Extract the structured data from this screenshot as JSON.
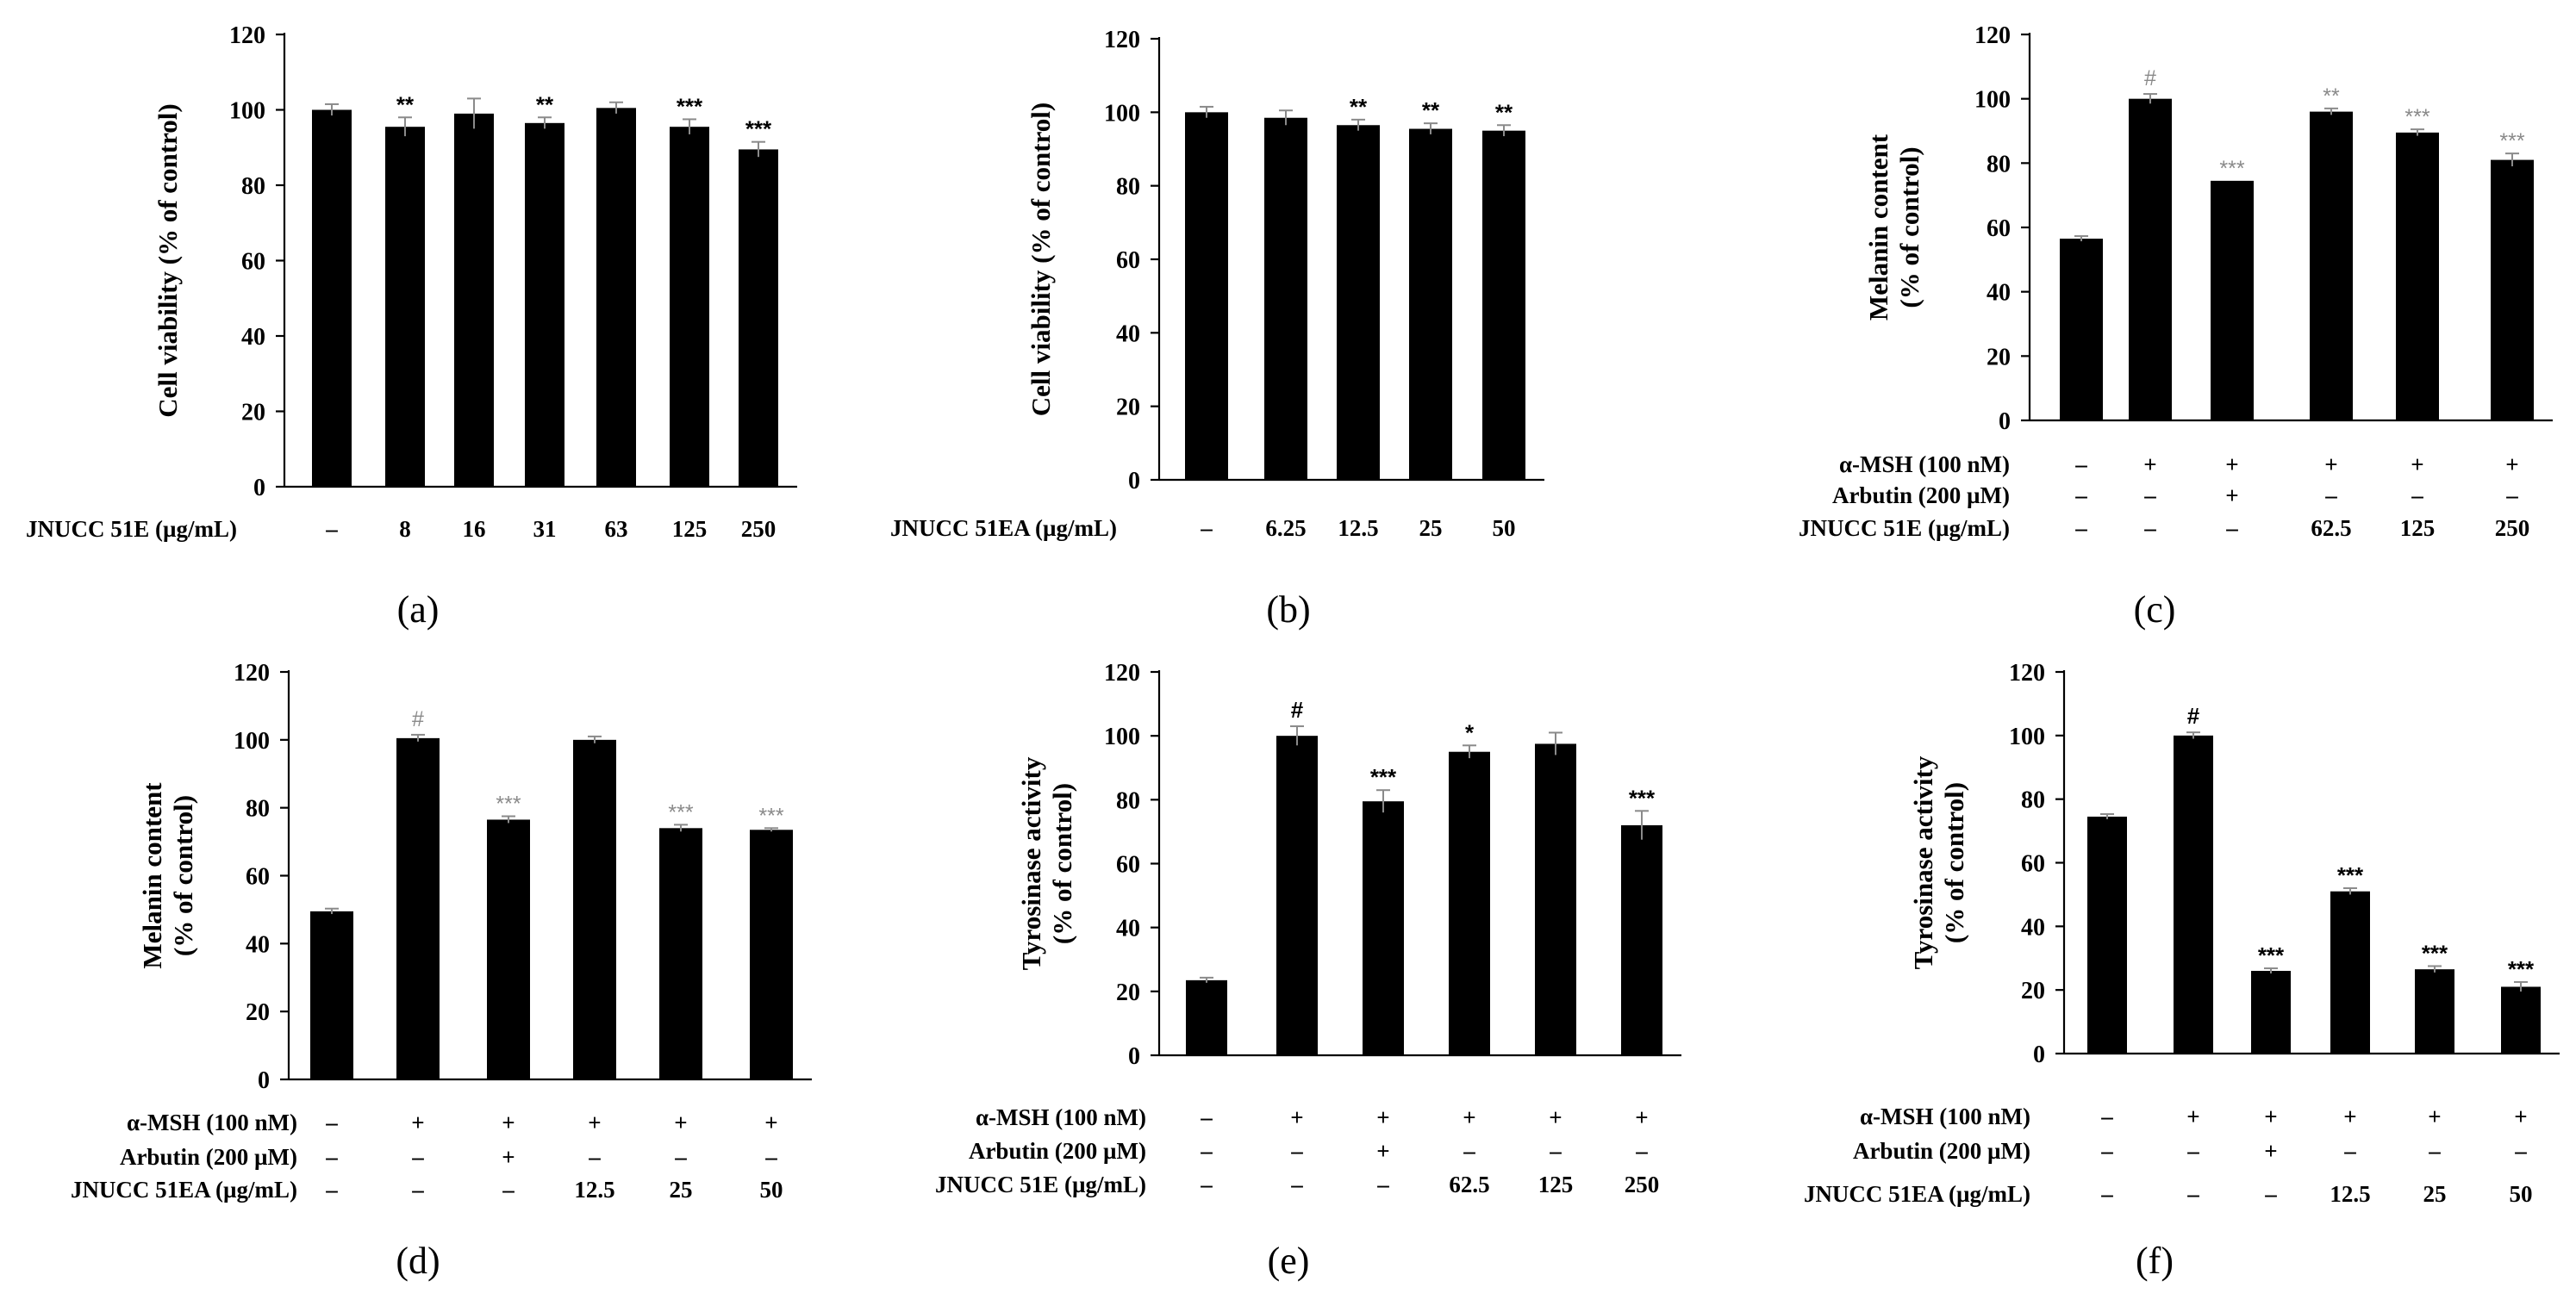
{
  "figure": {
    "panels": [
      "a",
      "b",
      "c",
      "d",
      "e",
      "f"
    ]
  },
  "chart_data": [
    {
      "id": "a",
      "type": "bar",
      "panel_label": "(a)",
      "ylabel": [
        "Cell viability (% of control)"
      ],
      "ylim": [
        0,
        120
      ],
      "yticks": [
        0,
        20,
        40,
        60,
        80,
        100,
        120
      ],
      "values": [
        100,
        95.5,
        99,
        96.5,
        100.5,
        95.5,
        89.5
      ],
      "errors": [
        1.5,
        2.5,
        4,
        1.5,
        1.5,
        2,
        2
      ],
      "significance": [
        "",
        "**",
        "",
        "**",
        "",
        "***",
        "***"
      ],
      "sig_color": "#000000",
      "condition_rows": [
        {
          "label": "JNUCC 51E (µg/mL)",
          "cells": [
            "–",
            "8",
            "16",
            "31",
            "63",
            "125",
            "250"
          ]
        }
      ]
    },
    {
      "id": "b",
      "type": "bar",
      "panel_label": "(b)",
      "ylabel": [
        "Cell viability (% of control)"
      ],
      "ylim": [
        0,
        120
      ],
      "yticks": [
        0,
        20,
        40,
        60,
        80,
        100,
        120
      ],
      "values": [
        100,
        98.5,
        96.5,
        95.5,
        95
      ],
      "errors": [
        1.5,
        2,
        1.5,
        1.5,
        1.5
      ],
      "significance": [
        "",
        "",
        "**",
        "**",
        "**"
      ],
      "sig_color": "#000000",
      "condition_rows": [
        {
          "label": "JNUCC 51EA (µg/mL)",
          "cells": [
            "–",
            "6.25",
            "12.5",
            "25",
            "50"
          ]
        }
      ]
    },
    {
      "id": "c",
      "type": "bar",
      "panel_label": "(c)",
      "ylabel": [
        "Melanin content",
        "(% of control)"
      ],
      "ylim": [
        0,
        120
      ],
      "yticks": [
        0,
        20,
        40,
        60,
        80,
        100,
        120
      ],
      "values": [
        56.5,
        100,
        74.5,
        96,
        89.5,
        81
      ],
      "errors": [
        0.8,
        1.5,
        0,
        1,
        1,
        2
      ],
      "significance": [
        "",
        "#",
        "***",
        "**",
        "***",
        "***"
      ],
      "sig_color": "#8a8a8a",
      "condition_rows": [
        {
          "label": "α-MSH (100 nM)",
          "cells": [
            "–",
            "+",
            "+",
            "+",
            "+",
            "+"
          ]
        },
        {
          "label": "Arbutin (200 µM)",
          "cells": [
            "–",
            "–",
            "+",
            "–",
            "–",
            "–"
          ]
        },
        {
          "label": "JNUCC 51E (µg/mL)",
          "cells": [
            "–",
            "–",
            "–",
            "62.5",
            "125",
            "250"
          ]
        }
      ]
    },
    {
      "id": "d",
      "type": "bar",
      "panel_label": "(d)",
      "ylabel": [
        "Melanin content",
        "(% of control)"
      ],
      "ylim": [
        0,
        120
      ],
      "yticks": [
        0,
        20,
        40,
        60,
        80,
        100,
        120
      ],
      "values": [
        49.5,
        100.5,
        76.5,
        100,
        74,
        73.5
      ],
      "errors": [
        0.8,
        1,
        1,
        1,
        1,
        0.5
      ],
      "significance": [
        "",
        "#",
        "***",
        "",
        "***",
        "***"
      ],
      "sig_color": "#8a8a8a",
      "condition_rows": [
        {
          "label": "α-MSH (100 nM)",
          "cells": [
            "–",
            "+",
            "+",
            "+",
            "+",
            "+"
          ]
        },
        {
          "label": "Arbutin (200 µM)",
          "cells": [
            "–",
            "–",
            "+",
            "–",
            "–",
            "–"
          ]
        },
        {
          "label": "JNUCC 51EA (µg/mL)",
          "cells": [
            "–",
            "–",
            "–",
            "12.5",
            "25",
            "50"
          ]
        }
      ]
    },
    {
      "id": "e",
      "type": "bar",
      "panel_label": "(e)",
      "ylabel": [
        "Tyrosinase activity",
        "(% of control)"
      ],
      "ylim": [
        0,
        120
      ],
      "yticks": [
        0,
        20,
        40,
        60,
        80,
        100,
        120
      ],
      "values": [
        23.5,
        100,
        79.5,
        95,
        97.5,
        72
      ],
      "errors": [
        0.8,
        3,
        3.5,
        2,
        3.5,
        4.5
      ],
      "significance": [
        "",
        "#",
        "***",
        "*",
        "",
        "***"
      ],
      "sig_color": "#000000",
      "condition_rows": [
        {
          "label": "α-MSH (100 nM)",
          "cells": [
            "–",
            "+",
            "+",
            "+",
            "+",
            "+"
          ]
        },
        {
          "label": "Arbutin (200 µM)",
          "cells": [
            "–",
            "–",
            "+",
            "–",
            "–",
            "–"
          ]
        },
        {
          "label": "JNUCC 51E (µg/mL)",
          "cells": [
            "–",
            "–",
            "–",
            "62.5",
            "125",
            "250"
          ]
        }
      ]
    },
    {
      "id": "f",
      "type": "bar",
      "panel_label": "(f)",
      "ylabel": [
        "Tyrosinase activity",
        "(% of control)"
      ],
      "ylim": [
        0,
        120
      ],
      "yticks": [
        0,
        20,
        40,
        60,
        80,
        100,
        120
      ],
      "values": [
        74.5,
        100,
        26,
        51,
        26.5,
        21
      ],
      "errors": [
        0.8,
        1,
        0.8,
        1,
        1,
        1.5
      ],
      "significance": [
        "",
        "#",
        "***",
        "***",
        "***",
        "***"
      ],
      "sig_color": "#000000",
      "condition_rows": [
        {
          "label": "α-MSH (100 nM)",
          "cells": [
            "–",
            "+",
            "+",
            "+",
            "+",
            "+"
          ]
        },
        {
          "label": "Arbutin (200 µM)",
          "cells": [
            "–",
            "–",
            "+",
            "–",
            "–",
            "–"
          ]
        },
        {
          "label": "JNUCC 51EA (µg/mL)",
          "cells": [
            "–",
            "–",
            "–",
            "12.5",
            "25",
            "50"
          ]
        }
      ]
    }
  ]
}
